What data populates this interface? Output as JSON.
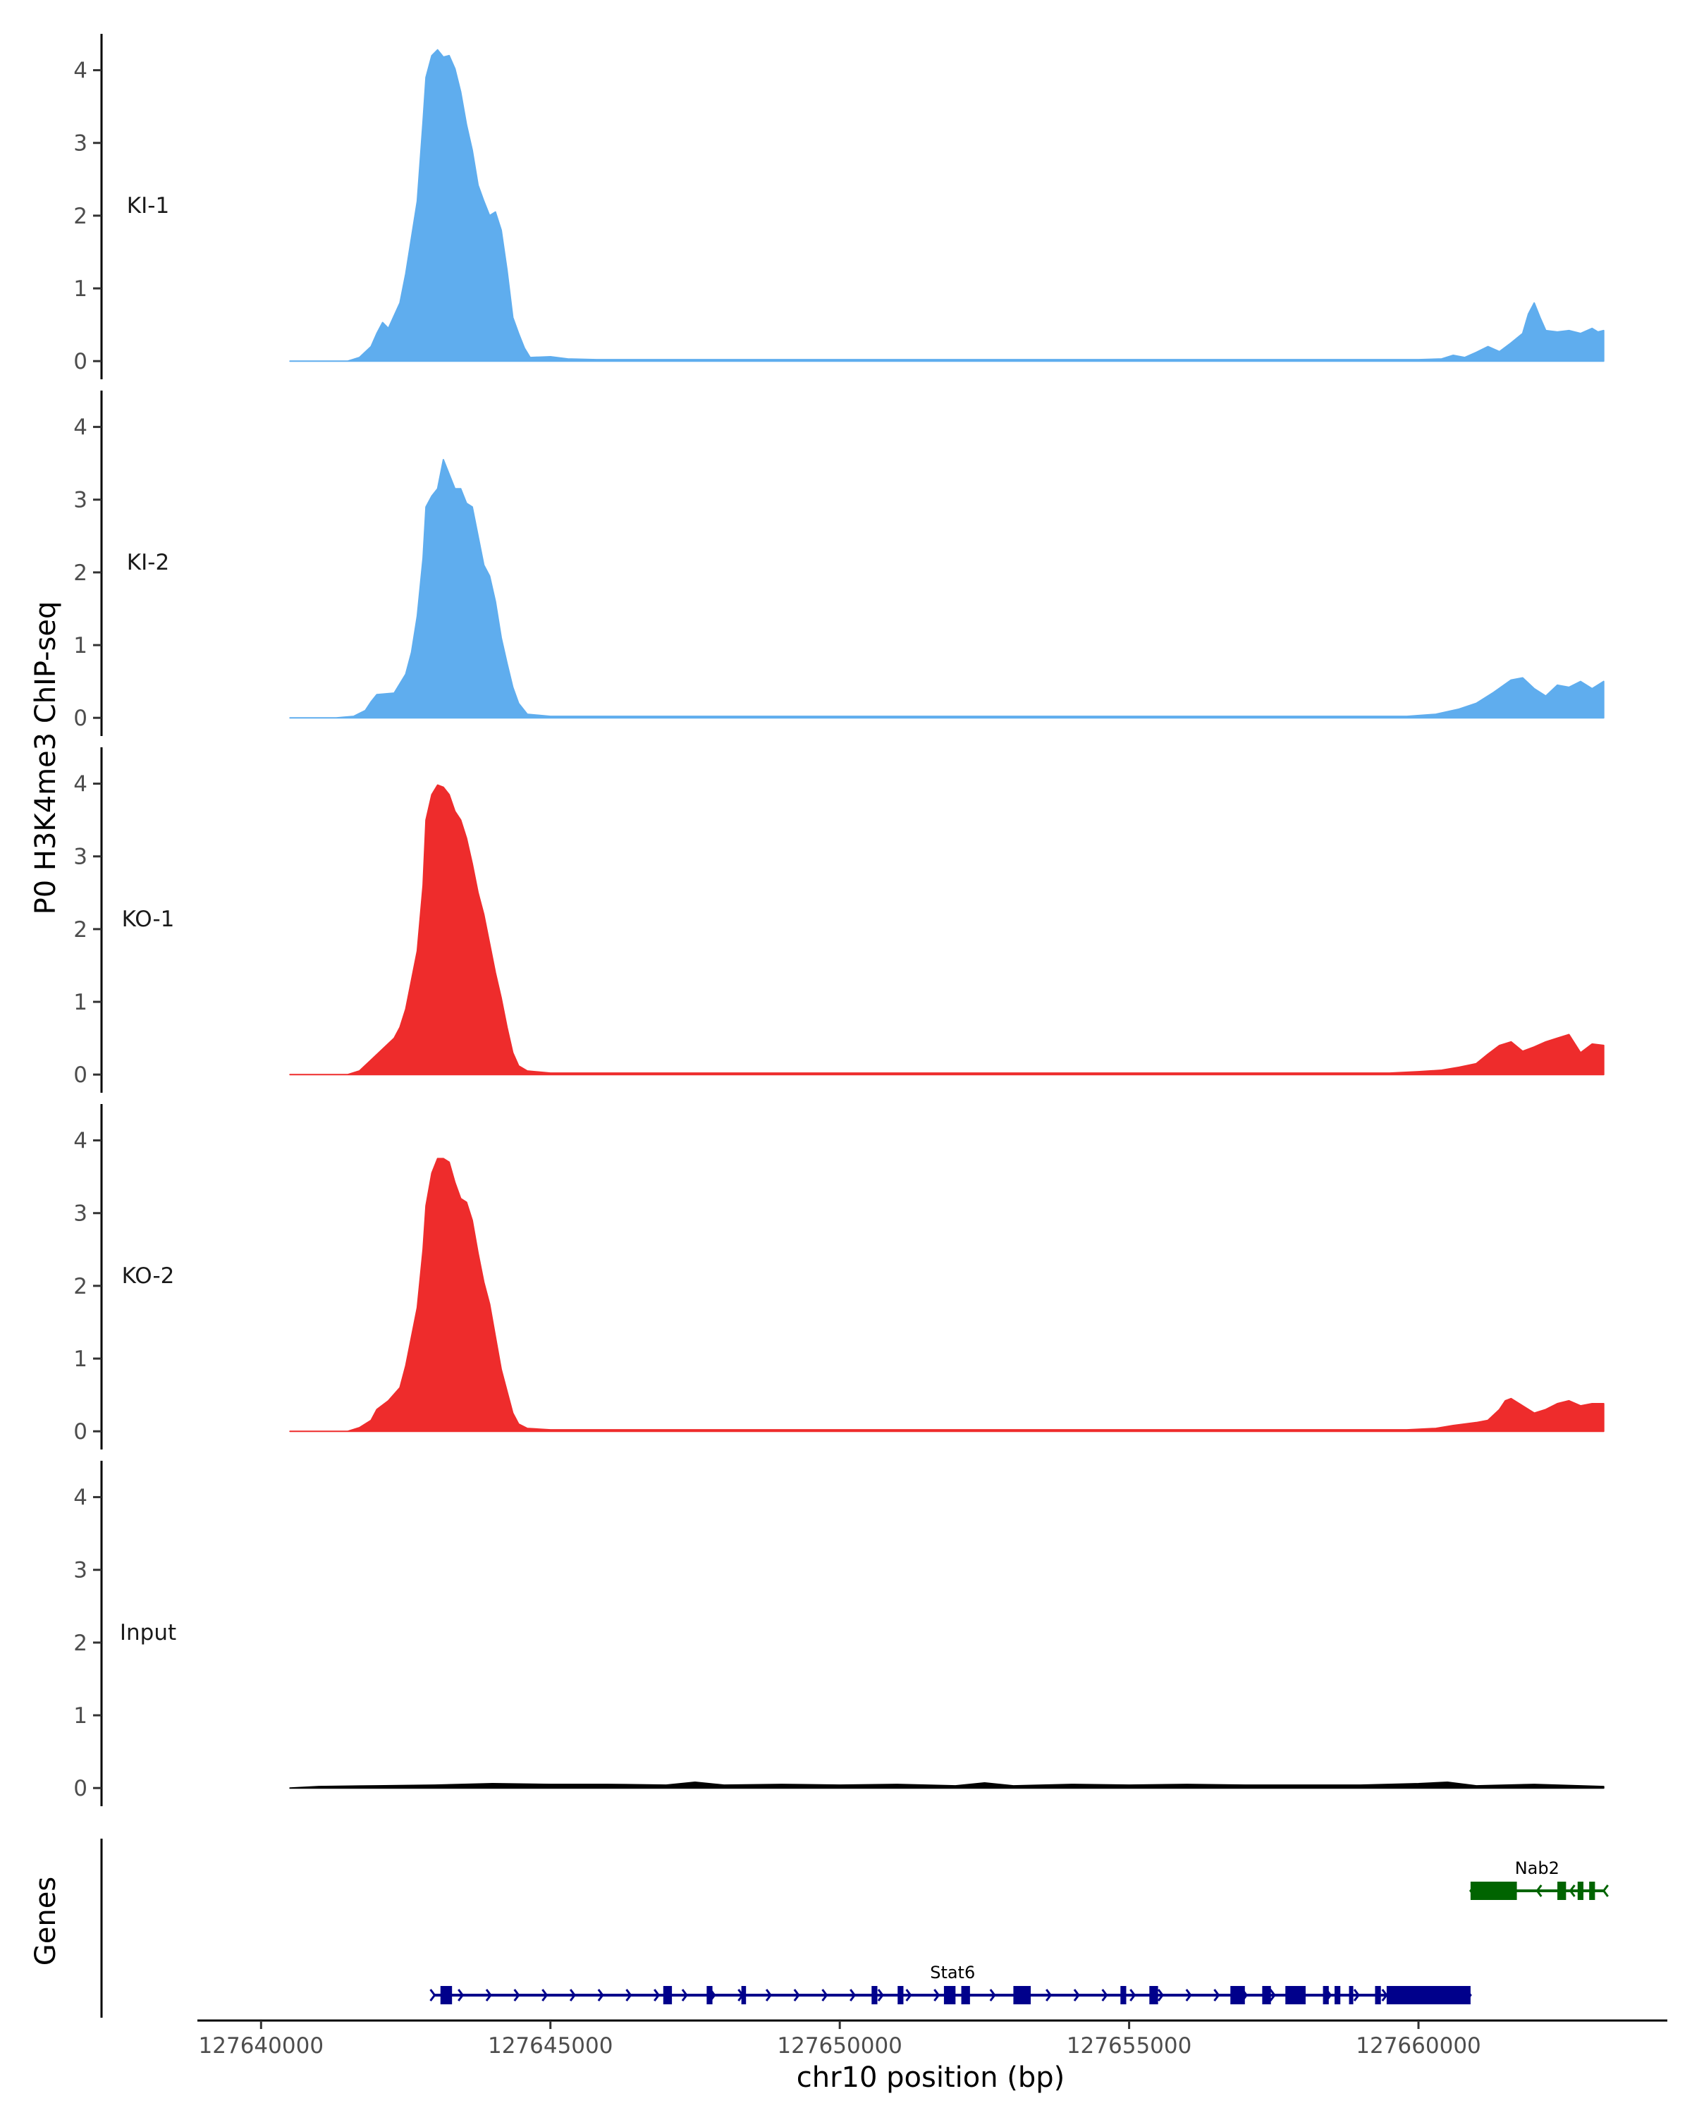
{
  "chart_data": {
    "type": "area",
    "ylabel": "P0 H3K4me3 ChIP-seq",
    "xlabel": "chr10 position (bp)",
    "genes_label": "Genes",
    "xlim": [
      127638900,
      127664300
    ],
    "ylim": [
      -0.25,
      4.5
    ],
    "y_ticks": [
      0,
      1,
      2,
      3,
      4
    ],
    "x_ticks": [
      127640000,
      127645000,
      127650000,
      127655000,
      127660000
    ],
    "x_tick_labels": [
      "127640000",
      "127645000",
      "127650000",
      "127655000",
      "127660000"
    ],
    "x_data_range": [
      127640500,
      127663200
    ],
    "tracks": [
      {
        "name": "KI-1",
        "color": "#5FADEE",
        "points": [
          [
            127640500,
            0
          ],
          [
            127641500,
            0
          ],
          [
            127641700,
            0.05
          ],
          [
            127641900,
            0.2
          ],
          [
            127642000,
            0.38
          ],
          [
            127642100,
            0.53
          ],
          [
            127642200,
            0.45
          ],
          [
            127642400,
            0.8
          ],
          [
            127642500,
            1.2
          ],
          [
            127642600,
            1.7
          ],
          [
            127642700,
            2.2
          ],
          [
            127642800,
            3.3
          ],
          [
            127642850,
            3.9
          ],
          [
            127642950,
            4.2
          ],
          [
            127643050,
            4.28
          ],
          [
            127643150,
            4.18
          ],
          [
            127643250,
            4.2
          ],
          [
            127643350,
            4.02
          ],
          [
            127643450,
            3.7
          ],
          [
            127643550,
            3.25
          ],
          [
            127643650,
            2.9
          ],
          [
            127643750,
            2.42
          ],
          [
            127643850,
            2.2
          ],
          [
            127643950,
            2.0
          ],
          [
            127644050,
            2.05
          ],
          [
            127644150,
            1.8
          ],
          [
            127644250,
            1.25
          ],
          [
            127644350,
            0.6
          ],
          [
            127644450,
            0.38
          ],
          [
            127644550,
            0.18
          ],
          [
            127644650,
            0.05
          ],
          [
            127645000,
            0.06
          ],
          [
            127645300,
            0.03
          ],
          [
            127645800,
            0.02
          ],
          [
            127650000,
            0.02
          ],
          [
            127655000,
            0.02
          ],
          [
            127660000,
            0.02
          ],
          [
            127660400,
            0.03
          ],
          [
            127660600,
            0.08
          ],
          [
            127660800,
            0.05
          ],
          [
            127661000,
            0.12
          ],
          [
            127661200,
            0.2
          ],
          [
            127661400,
            0.13
          ],
          [
            127661600,
            0.25
          ],
          [
            127661800,
            0.38
          ],
          [
            127661900,
            0.65
          ],
          [
            127662000,
            0.8
          ],
          [
            127662100,
            0.6
          ],
          [
            127662200,
            0.42
          ],
          [
            127662400,
            0.4
          ],
          [
            127662600,
            0.42
          ],
          [
            127662800,
            0.38
          ],
          [
            127663000,
            0.45
          ],
          [
            127663100,
            0.4
          ],
          [
            127663200,
            0.42
          ],
          [
            127663200,
            0
          ]
        ]
      },
      {
        "name": "KI-2",
        "color": "#5FADEE",
        "points": [
          [
            127640500,
            0
          ],
          [
            127641300,
            0
          ],
          [
            127641600,
            0.02
          ],
          [
            127641800,
            0.1
          ],
          [
            127641900,
            0.22
          ],
          [
            127642000,
            0.32
          ],
          [
            127642300,
            0.34
          ],
          [
            127642500,
            0.6
          ],
          [
            127642600,
            0.9
          ],
          [
            127642700,
            1.4
          ],
          [
            127642800,
            2.2
          ],
          [
            127642850,
            2.9
          ],
          [
            127642950,
            3.05
          ],
          [
            127643050,
            3.15
          ],
          [
            127643150,
            3.55
          ],
          [
            127643250,
            3.35
          ],
          [
            127643350,
            3.15
          ],
          [
            127643450,
            3.15
          ],
          [
            127643550,
            2.95
          ],
          [
            127643650,
            2.9
          ],
          [
            127643750,
            2.5
          ],
          [
            127643850,
            2.1
          ],
          [
            127643950,
            1.95
          ],
          [
            127644050,
            1.6
          ],
          [
            127644150,
            1.1
          ],
          [
            127644250,
            0.75
          ],
          [
            127644350,
            0.42
          ],
          [
            127644450,
            0.2
          ],
          [
            127644600,
            0.05
          ],
          [
            127645000,
            0.02
          ],
          [
            127650000,
            0.02
          ],
          [
            127655000,
            0.02
          ],
          [
            127659800,
            0.02
          ],
          [
            127660300,
            0.05
          ],
          [
            127660700,
            0.12
          ],
          [
            127661000,
            0.2
          ],
          [
            127661300,
            0.35
          ],
          [
            127661600,
            0.52
          ],
          [
            127661800,
            0.55
          ],
          [
            127662000,
            0.4
          ],
          [
            127662200,
            0.3
          ],
          [
            127662400,
            0.45
          ],
          [
            127662600,
            0.42
          ],
          [
            127662800,
            0.5
          ],
          [
            127663000,
            0.4
          ],
          [
            127663200,
            0.5
          ],
          [
            127663200,
            0
          ]
        ]
      },
      {
        "name": "KO-1",
        "color": "#EE2C2C",
        "points": [
          [
            127640500,
            0
          ],
          [
            127641500,
            0
          ],
          [
            127641700,
            0.05
          ],
          [
            127641900,
            0.2
          ],
          [
            127642100,
            0.35
          ],
          [
            127642300,
            0.5
          ],
          [
            127642400,
            0.65
          ],
          [
            127642500,
            0.9
          ],
          [
            127642600,
            1.3
          ],
          [
            127642700,
            1.7
          ],
          [
            127642800,
            2.6
          ],
          [
            127642850,
            3.5
          ],
          [
            127642950,
            3.85
          ],
          [
            127643050,
            3.98
          ],
          [
            127643150,
            3.95
          ],
          [
            127643250,
            3.85
          ],
          [
            127643350,
            3.62
          ],
          [
            127643450,
            3.5
          ],
          [
            127643550,
            3.25
          ],
          [
            127643650,
            2.9
          ],
          [
            127643750,
            2.5
          ],
          [
            127643850,
            2.2
          ],
          [
            127643950,
            1.8
          ],
          [
            127644050,
            1.4
          ],
          [
            127644150,
            1.05
          ],
          [
            127644250,
            0.65
          ],
          [
            127644350,
            0.3
          ],
          [
            127644450,
            0.12
          ],
          [
            127644600,
            0.05
          ],
          [
            127645000,
            0.02
          ],
          [
            127650000,
            0.02
          ],
          [
            127655000,
            0.02
          ],
          [
            127659500,
            0.02
          ],
          [
            127660000,
            0.04
          ],
          [
            127660400,
            0.06
          ],
          [
            127660700,
            0.1
          ],
          [
            127661000,
            0.15
          ],
          [
            127661200,
            0.28
          ],
          [
            127661400,
            0.4
          ],
          [
            127661600,
            0.45
          ],
          [
            127661800,
            0.32
          ],
          [
            127662000,
            0.38
          ],
          [
            127662200,
            0.45
          ],
          [
            127662400,
            0.5
          ],
          [
            127662600,
            0.55
          ],
          [
            127662800,
            0.3
          ],
          [
            127663000,
            0.42
          ],
          [
            127663200,
            0.4
          ],
          [
            127663200,
            0
          ]
        ]
      },
      {
        "name": "KO-2",
        "color": "#EE2C2C",
        "points": [
          [
            127640500,
            0
          ],
          [
            127641500,
            0
          ],
          [
            127641700,
            0.05
          ],
          [
            127641900,
            0.15
          ],
          [
            127642000,
            0.3
          ],
          [
            127642200,
            0.42
          ],
          [
            127642400,
            0.6
          ],
          [
            127642500,
            0.9
          ],
          [
            127642600,
            1.3
          ],
          [
            127642700,
            1.7
          ],
          [
            127642800,
            2.5
          ],
          [
            127642850,
            3.1
          ],
          [
            127642950,
            3.55
          ],
          [
            127643050,
            3.75
          ],
          [
            127643150,
            3.75
          ],
          [
            127643250,
            3.7
          ],
          [
            127643350,
            3.42
          ],
          [
            127643450,
            3.2
          ],
          [
            127643550,
            3.15
          ],
          [
            127643650,
            2.9
          ],
          [
            127643750,
            2.45
          ],
          [
            127643850,
            2.05
          ],
          [
            127643950,
            1.75
          ],
          [
            127644050,
            1.3
          ],
          [
            127644150,
            0.85
          ],
          [
            127644250,
            0.55
          ],
          [
            127644350,
            0.25
          ],
          [
            127644450,
            0.1
          ],
          [
            127644600,
            0.04
          ],
          [
            127645000,
            0.02
          ],
          [
            127650000,
            0.02
          ],
          [
            127655000,
            0.02
          ],
          [
            127659800,
            0.02
          ],
          [
            127660300,
            0.04
          ],
          [
            127660600,
            0.08
          ],
          [
            127661000,
            0.12
          ],
          [
            127661200,
            0.15
          ],
          [
            127661400,
            0.3
          ],
          [
            127661500,
            0.42
          ],
          [
            127661600,
            0.45
          ],
          [
            127661800,
            0.35
          ],
          [
            127662000,
            0.25
          ],
          [
            127662200,
            0.3
          ],
          [
            127662400,
            0.38
          ],
          [
            127662600,
            0.42
          ],
          [
            127662800,
            0.35
          ],
          [
            127663000,
            0.38
          ],
          [
            127663200,
            0.38
          ],
          [
            127663200,
            0
          ]
        ]
      },
      {
        "name": "Input",
        "color": "#000000",
        "points": [
          [
            127640500,
            0
          ],
          [
            127641000,
            0.02
          ],
          [
            127642000,
            0.03
          ],
          [
            127643000,
            0.04
          ],
          [
            127644000,
            0.06
          ],
          [
            127645000,
            0.05
          ],
          [
            127646000,
            0.05
          ],
          [
            127647000,
            0.04
          ],
          [
            127647500,
            0.08
          ],
          [
            127648000,
            0.04
          ],
          [
            127649000,
            0.05
          ],
          [
            127650000,
            0.04
          ],
          [
            127651000,
            0.05
          ],
          [
            127652000,
            0.03
          ],
          [
            127652500,
            0.07
          ],
          [
            127653000,
            0.03
          ],
          [
            127654000,
            0.05
          ],
          [
            127655000,
            0.04
          ],
          [
            127656000,
            0.05
          ],
          [
            127657000,
            0.04
          ],
          [
            127658000,
            0.04
          ],
          [
            127659000,
            0.04
          ],
          [
            127660000,
            0.06
          ],
          [
            127660500,
            0.08
          ],
          [
            127661000,
            0.03
          ],
          [
            127662000,
            0.05
          ],
          [
            127663200,
            0.02
          ],
          [
            127663200,
            0
          ]
        ]
      }
    ],
    "genes": [
      {
        "name": "Stat6",
        "color": "#00008B",
        "strand": "+",
        "row": 2,
        "start": 127643000,
        "end": 127660900,
        "thick": [
          [
            127643100,
            127643300
          ],
          [
            127646950,
            127647100
          ],
          [
            127647700,
            127647800
          ],
          [
            127648300,
            127648380
          ],
          [
            127650550,
            127650650
          ],
          [
            127651000,
            127651100
          ],
          [
            127651800,
            127652000
          ],
          [
            127652100,
            127652250
          ],
          [
            127653000,
            127653300
          ],
          [
            127654850,
            127654950
          ],
          [
            127655350,
            127655500
          ],
          [
            127656750,
            127657000
          ],
          [
            127657300,
            127657450
          ],
          [
            127657700,
            127658050
          ],
          [
            127658350,
            127658450
          ],
          [
            127658550,
            127658650
          ],
          [
            127658800,
            127658850
          ],
          [
            127659250,
            127659350
          ],
          [
            127659450,
            127660900
          ]
        ]
      },
      {
        "name": "Nab2",
        "color": "#006400",
        "strand": "-",
        "row": 1,
        "start": 127660900,
        "end": 127663200,
        "thick": [
          [
            127660900,
            127661700
          ],
          [
            127662400,
            127662550
          ],
          [
            127662750,
            127662850
          ],
          [
            127662950,
            127663050
          ]
        ]
      }
    ]
  }
}
